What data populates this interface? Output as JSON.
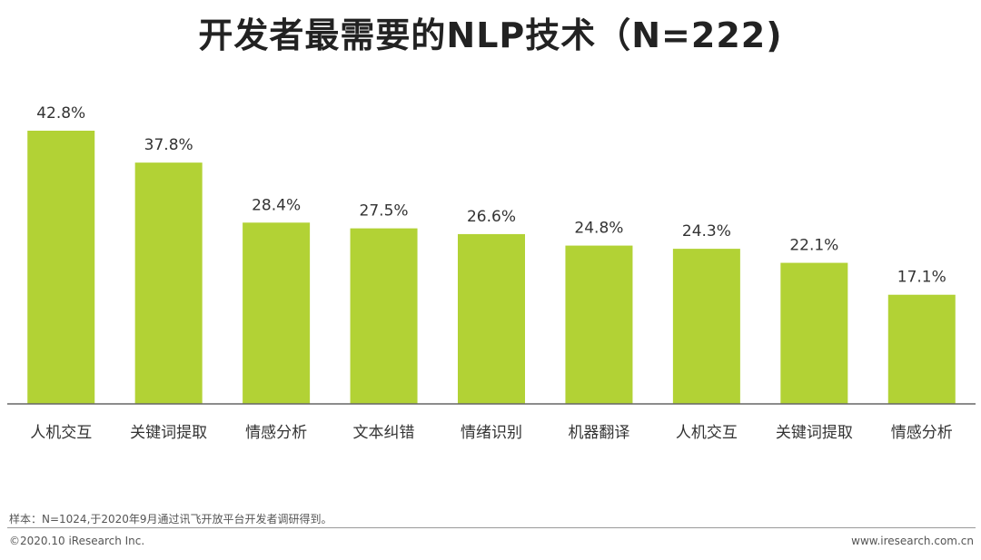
{
  "chart_data": {
    "type": "bar",
    "title": "开发者最需要的NLP技术（N=222)",
    "categories": [
      "人机交互",
      "关键词提取",
      "情感分析",
      "文本纠错",
      "情绪识别",
      "机器翻译",
      "人机交互",
      "关键词提取",
      "情感分析"
    ],
    "values": [
      42.8,
      37.8,
      28.4,
      27.5,
      26.6,
      24.8,
      24.3,
      22.1,
      17.1
    ],
    "value_labels": [
      "42.8%",
      "37.8%",
      "28.4%",
      "27.5%",
      "26.6%",
      "24.8%",
      "24.3%",
      "22.1%",
      "17.1%"
    ],
    "ylim": [
      0,
      42.8
    ],
    "grid": false,
    "colors": {
      "bar": "#b2d235",
      "axis": "#666666"
    }
  },
  "footer": {
    "note": "样本：N=1024,于2020年9月通过讯飞开放平台开发者调研得到。",
    "copyright": "©2020.10 iResearch Inc.",
    "site": "www.iresearch.com.cn"
  }
}
